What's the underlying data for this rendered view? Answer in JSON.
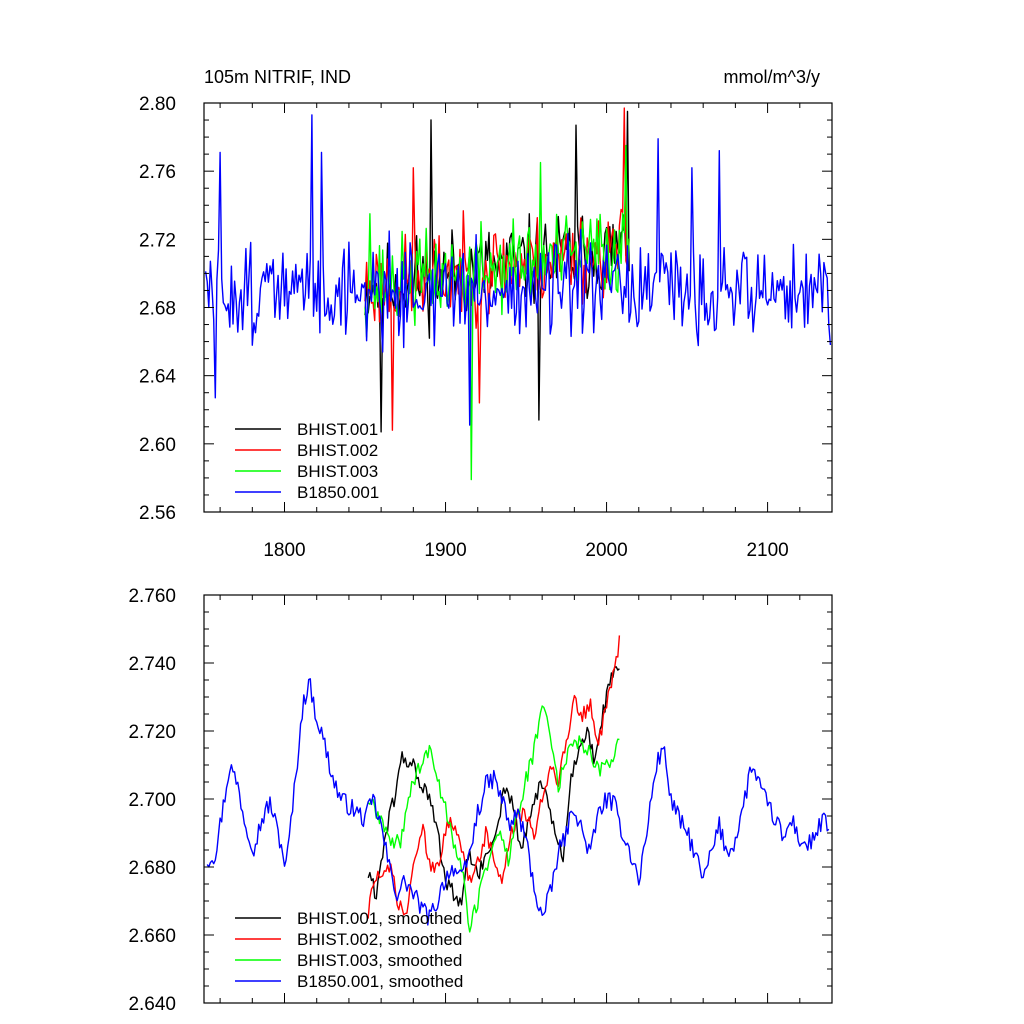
{
  "chart_data": [
    {
      "type": "line",
      "title_left": "105m NITRIF, IND",
      "title_right": "mmol/m^3/y",
      "xlim": [
        1750,
        2140
      ],
      "ylim": [
        2.56,
        2.8
      ],
      "xticks": [
        1800,
        1900,
        2000,
        2100
      ],
      "xtick_labels": [
        "1800",
        "1900",
        "2000",
        "2100"
      ],
      "yticks": [
        2.56,
        2.6,
        2.64,
        2.68,
        2.72,
        2.76,
        2.8
      ],
      "ytick_labels": [
        "2.56",
        "2.60",
        "2.64",
        "2.68",
        "2.72",
        "2.76",
        "2.80"
      ],
      "legend_position": "bottom-left",
      "series": [
        {
          "name": "BHIST.001",
          "color": "#000000",
          "x_start": 1850,
          "x_end": 2014,
          "mean": 2.692,
          "amp": 0.026,
          "trend": 0.00014,
          "seed": 11,
          "spikes": [
            [
              1891,
              2.79
            ],
            [
              1860,
              2.607
            ],
            [
              1958,
              2.614
            ],
            [
              1981,
              2.787
            ],
            [
              2013,
              2.795
            ]
          ]
        },
        {
          "name": "BHIST.002",
          "color": "#ff0000",
          "x_start": 1850,
          "x_end": 2014,
          "mean": 2.692,
          "amp": 0.026,
          "trend": 0.00014,
          "seed": 23,
          "spikes": [
            [
              1867,
              2.608
            ],
            [
              1880,
              2.762
            ],
            [
              1921,
              2.624
            ],
            [
              2011,
              2.797
            ]
          ]
        },
        {
          "name": "BHIST.003",
          "color": "#00ff00",
          "x_start": 1850,
          "x_end": 2014,
          "mean": 2.692,
          "amp": 0.026,
          "trend": 0.00014,
          "seed": 37,
          "spikes": [
            [
              1916,
              2.579
            ],
            [
              1853,
              2.735
            ],
            [
              1959,
              2.765
            ],
            [
              2012,
              2.775
            ]
          ]
        },
        {
          "name": "B1850.001",
          "color": "#0000ff",
          "x_start": 1751,
          "x_end": 2139,
          "mean": 2.69,
          "amp": 0.028,
          "trend": 0.0,
          "seed": 51,
          "spikes": [
            [
              1817,
              2.793
            ],
            [
              1760,
              2.771
            ],
            [
              1823,
              2.771
            ],
            [
              1757,
              2.627
            ],
            [
              1915,
              2.611
            ],
            [
              2032,
              2.779
            ],
            [
              2053,
              2.762
            ],
            [
              2070,
              2.772
            ],
            [
              2139,
              2.658
            ]
          ]
        }
      ]
    },
    {
      "type": "line",
      "xlim": [
        1750,
        2140
      ],
      "ylim": [
        2.64,
        2.76
      ],
      "xticks": [
        1800,
        1900,
        2000,
        2100
      ],
      "yticks": [
        2.64,
        2.66,
        2.68,
        2.7,
        2.72,
        2.74,
        2.76
      ],
      "ytick_labels": [
        "2.640",
        "2.660",
        "2.680",
        "2.700",
        "2.720",
        "2.740",
        "2.760"
      ],
      "legend_position": "bottom-left",
      "series": [
        {
          "name": "BHIST.001, smoothed",
          "color": "#000000",
          "seed": 61,
          "noise": 0.0025,
          "key": [
            [
              1852,
              2.678
            ],
            [
              1857,
              2.672
            ],
            [
              1862,
              2.688
            ],
            [
              1868,
              2.7
            ],
            [
              1873,
              2.712
            ],
            [
              1880,
              2.71
            ],
            [
              1885,
              2.704
            ],
            [
              1890,
              2.7
            ],
            [
              1895,
              2.69
            ],
            [
              1900,
              2.676
            ],
            [
              1905,
              2.672
            ],
            [
              1910,
              2.668
            ],
            [
              1914,
              2.684
            ],
            [
              1920,
              2.678
            ],
            [
              1925,
              2.682
            ],
            [
              1931,
              2.69
            ],
            [
              1937,
              2.704
            ],
            [
              1942,
              2.698
            ],
            [
              1947,
              2.684
            ],
            [
              1953,
              2.696
            ],
            [
              1958,
              2.704
            ],
            [
              1963,
              2.7
            ],
            [
              1968,
              2.69
            ],
            [
              1973,
              2.682
            ],
            [
              1978,
              2.706
            ],
            [
              1983,
              2.716
            ],
            [
              1988,
              2.72
            ],
            [
              1993,
              2.71
            ],
            [
              1998,
              2.726
            ],
            [
              2003,
              2.736
            ],
            [
              2008,
              2.738
            ]
          ]
        },
        {
          "name": "BHIST.002, smoothed",
          "color": "#ff0000",
          "seed": 73,
          "noise": 0.0025,
          "key": [
            [
              1852,
              2.666
            ],
            [
              1856,
              2.678
            ],
            [
              1861,
              2.676
            ],
            [
              1866,
              2.68
            ],
            [
              1871,
              2.668
            ],
            [
              1876,
              2.666
            ],
            [
              1881,
              2.684
            ],
            [
              1886,
              2.69
            ],
            [
              1891,
              2.68
            ],
            [
              1896,
              2.682
            ],
            [
              1901,
              2.694
            ],
            [
              1906,
              2.69
            ],
            [
              1911,
              2.684
            ],
            [
              1915,
              2.676
            ],
            [
              1920,
              2.682
            ],
            [
              1925,
              2.69
            ],
            [
              1930,
              2.682
            ],
            [
              1935,
              2.676
            ],
            [
              1940,
              2.688
            ],
            [
              1945,
              2.696
            ],
            [
              1950,
              2.694
            ],
            [
              1955,
              2.69
            ],
            [
              1960,
              2.7
            ],
            [
              1965,
              2.71
            ],
            [
              1970,
              2.706
            ],
            [
              1975,
              2.716
            ],
            [
              1980,
              2.73
            ],
            [
              1985,
              2.724
            ],
            [
              1990,
              2.728
            ],
            [
              1995,
              2.716
            ],
            [
              2000,
              2.728
            ],
            [
              2005,
              2.738
            ],
            [
              2008,
              2.746
            ]
          ]
        },
        {
          "name": "BHIST.003, smoothed",
          "color": "#00ff00",
          "seed": 89,
          "noise": 0.0025,
          "key": [
            [
              1852,
              2.7
            ],
            [
              1857,
              2.696
            ],
            [
              1862,
              2.692
            ],
            [
              1867,
              2.686
            ],
            [
              1872,
              2.688
            ],
            [
              1877,
              2.7
            ],
            [
              1882,
              2.708
            ],
            [
              1887,
              2.712
            ],
            [
              1891,
              2.714
            ],
            [
              1896,
              2.704
            ],
            [
              1901,
              2.696
            ],
            [
              1906,
              2.686
            ],
            [
              1910,
              2.68
            ],
            [
              1915,
              2.662
            ],
            [
              1919,
              2.668
            ],
            [
              1924,
              2.678
            ],
            [
              1929,
              2.686
            ],
            [
              1934,
              2.69
            ],
            [
              1939,
              2.682
            ],
            [
              1944,
              2.694
            ],
            [
              1949,
              2.704
            ],
            [
              1954,
              2.712
            ],
            [
              1959,
              2.724
            ],
            [
              1962,
              2.728
            ],
            [
              1966,
              2.716
            ],
            [
              1970,
              2.704
            ],
            [
              1975,
              2.712
            ],
            [
              1980,
              2.718
            ],
            [
              1985,
              2.716
            ],
            [
              1990,
              2.714
            ],
            [
              1995,
              2.708
            ],
            [
              2000,
              2.71
            ],
            [
              2005,
              2.714
            ],
            [
              2008,
              2.718
            ]
          ]
        },
        {
          "name": "B1850.001, smoothed",
          "color": "#0000ff",
          "seed": 97,
          "noise": 0.0028,
          "key": [
            [
              1752,
              2.682
            ],
            [
              1757,
              2.684
            ],
            [
              1762,
              2.698
            ],
            [
              1766,
              2.71
            ],
            [
              1771,
              2.704
            ],
            [
              1776,
              2.692
            ],
            [
              1781,
              2.686
            ],
            [
              1786,
              2.694
            ],
            [
              1791,
              2.699
            ],
            [
              1796,
              2.69
            ],
            [
              1801,
              2.68
            ],
            [
              1806,
              2.702
            ],
            [
              1811,
              2.726
            ],
            [
              1815,
              2.735
            ],
            [
              1820,
              2.724
            ],
            [
              1825,
              2.716
            ],
            [
              1830,
              2.706
            ],
            [
              1835,
              2.7
            ],
            [
              1840,
              2.698
            ],
            [
              1845,
              2.696
            ],
            [
              1850,
              2.694
            ],
            [
              1855,
              2.7
            ],
            [
              1860,
              2.692
            ],
            [
              1865,
              2.68
            ],
            [
              1870,
              2.672
            ],
            [
              1875,
              2.676
            ],
            [
              1880,
              2.672
            ],
            [
              1885,
              2.668
            ],
            [
              1890,
              2.665
            ],
            [
              1895,
              2.67
            ],
            [
              1900,
              2.677
            ],
            [
              1905,
              2.68
            ],
            [
              1910,
              2.676
            ],
            [
              1915,
              2.684
            ],
            [
              1920,
              2.696
            ],
            [
              1925,
              2.704
            ],
            [
              1930,
              2.706
            ],
            [
              1935,
              2.7
            ],
            [
              1940,
              2.692
            ],
            [
              1945,
              2.696
            ],
            [
              1950,
              2.688
            ],
            [
              1955,
              2.674
            ],
            [
              1960,
              2.665
            ],
            [
              1965,
              2.672
            ],
            [
              1970,
              2.684
            ],
            [
              1975,
              2.69
            ],
            [
              1980,
              2.698
            ],
            [
              1985,
              2.69
            ],
            [
              1990,
              2.684
            ],
            [
              1995,
              2.696
            ],
            [
              2000,
              2.7
            ],
            [
              2005,
              2.698
            ],
            [
              2010,
              2.69
            ],
            [
              2015,
              2.684
            ],
            [
              2020,
              2.676
            ],
            [
              2025,
              2.69
            ],
            [
              2030,
              2.708
            ],
            [
              2035,
              2.716
            ],
            [
              2040,
              2.7
            ],
            [
              2045,
              2.694
            ],
            [
              2050,
              2.69
            ],
            [
              2055,
              2.684
            ],
            [
              2060,
              2.676
            ],
            [
              2065,
              2.684
            ],
            [
              2070,
              2.692
            ],
            [
              2075,
              2.684
            ],
            [
              2080,
              2.688
            ],
            [
              2085,
              2.698
            ],
            [
              2090,
              2.71
            ],
            [
              2095,
              2.704
            ],
            [
              2100,
              2.698
            ],
            [
              2105,
              2.694
            ],
            [
              2110,
              2.688
            ],
            [
              2115,
              2.694
            ],
            [
              2120,
              2.688
            ],
            [
              2125,
              2.686
            ],
            [
              2130,
              2.69
            ],
            [
              2135,
              2.694
            ],
            [
              2138,
              2.69
            ]
          ]
        }
      ]
    }
  ]
}
